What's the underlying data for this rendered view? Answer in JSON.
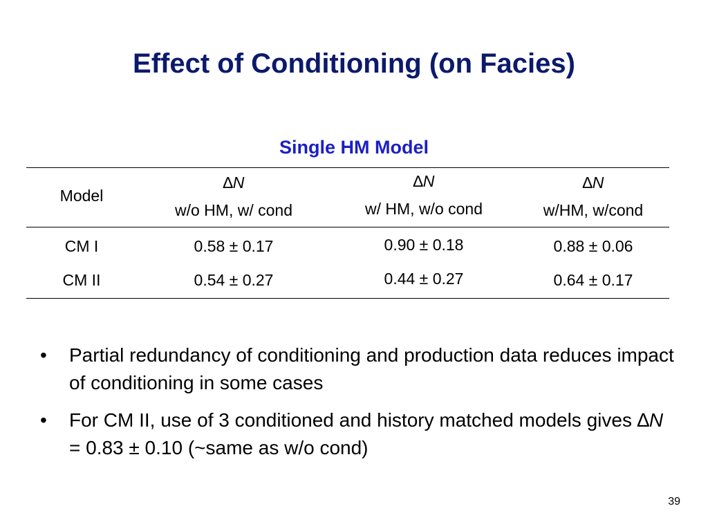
{
  "title": "Effect of Conditioning (on Facies)",
  "table": {
    "caption": "Single HM Model",
    "header_model": "Model",
    "columns": [
      {
        "symbol": "∆",
        "var": "N",
        "sub": "w/o HM, w/ cond"
      },
      {
        "symbol": "∆",
        "var": "N",
        "sub": "w/ HM, w/o cond"
      },
      {
        "symbol": "∆",
        "var": "N",
        "sub": "w/HM, w/cond"
      }
    ],
    "rows": [
      {
        "model": "CM I",
        "values": [
          "0.58 ± 0.17",
          "0.90 ± 0.18",
          "0.88 ± 0.06"
        ]
      },
      {
        "model": "CM II",
        "values": [
          "0.54 ± 0.27",
          "0.44 ± 0.27",
          "0.64 ± 0.17"
        ]
      }
    ]
  },
  "bullets": {
    "marker": "•",
    "b1": "Partial redundancy of conditioning and production data reduces impact of conditioning in some cases",
    "b2_pre": "For CM II, use of 3 conditioned and history matched models gives ",
    "b2_symbol": "∆",
    "b2_var": "N",
    "b2_post": " = 0.83 ± 0.10 (~same as w/o cond)"
  },
  "page_number": "39"
}
